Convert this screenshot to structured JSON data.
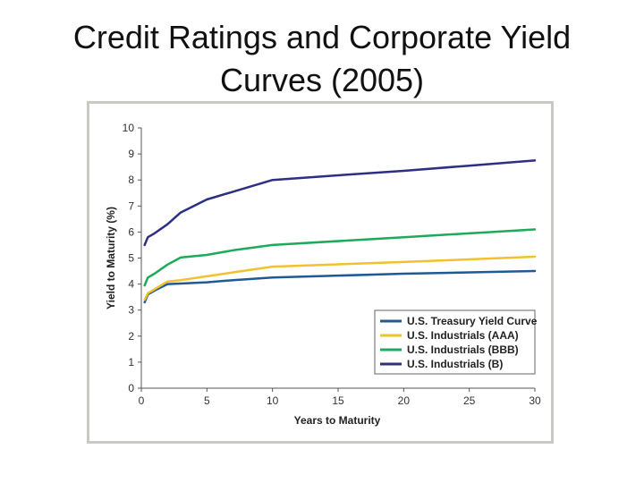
{
  "slide": {
    "title_line1": "Credit Ratings and Corporate Yield",
    "title_line2": "Curves (2005)"
  },
  "chart_data": {
    "type": "line",
    "title": "Credit Ratings and Corporate Yield Curves (2005)",
    "xlabel": "Years to Maturity",
    "ylabel": "Yield to Maturity (%)",
    "xlim": [
      0,
      30
    ],
    "ylim": [
      0,
      10
    ],
    "x_ticks": [
      0,
      5,
      10,
      15,
      20,
      25,
      30
    ],
    "y_ticks": [
      0,
      1,
      2,
      3,
      4,
      5,
      6,
      7,
      8,
      9,
      10
    ],
    "grid": false,
    "legend_position": "bottom-right",
    "series": [
      {
        "name": "U.S. Treasury Yield Curve",
        "color": "#1f5a96",
        "x": [
          0.25,
          0.5,
          1,
          2,
          3,
          5,
          7,
          10,
          20,
          30
        ],
        "y": [
          3.3,
          3.6,
          3.75,
          4.0,
          4.02,
          4.07,
          4.15,
          4.25,
          4.4,
          4.5
        ]
      },
      {
        "name": "U.S. Industrials (AAA)",
        "color": "#f2c12e",
        "x": [
          0.25,
          0.5,
          1,
          2,
          3,
          5,
          7,
          10,
          20,
          30
        ],
        "y": [
          3.4,
          3.65,
          3.8,
          4.1,
          4.15,
          4.3,
          4.45,
          4.67,
          4.85,
          5.05
        ]
      },
      {
        "name": "U.S. Industrials (BBB)",
        "color": "#1faa5a",
        "x": [
          0.25,
          0.5,
          1,
          2,
          3,
          5,
          7,
          10,
          20,
          30
        ],
        "y": [
          3.95,
          4.25,
          4.4,
          4.75,
          5.02,
          5.12,
          5.3,
          5.5,
          5.8,
          6.1
        ]
      },
      {
        "name": "U.S. Industrials (B)",
        "color": "#2e2f82",
        "x": [
          0.25,
          0.5,
          1,
          2,
          3,
          5,
          7,
          10,
          15,
          20,
          25,
          30
        ],
        "y": [
          5.5,
          5.8,
          5.95,
          6.3,
          6.75,
          7.25,
          7.55,
          8.0,
          8.18,
          8.35,
          8.55,
          8.75
        ]
      }
    ]
  }
}
